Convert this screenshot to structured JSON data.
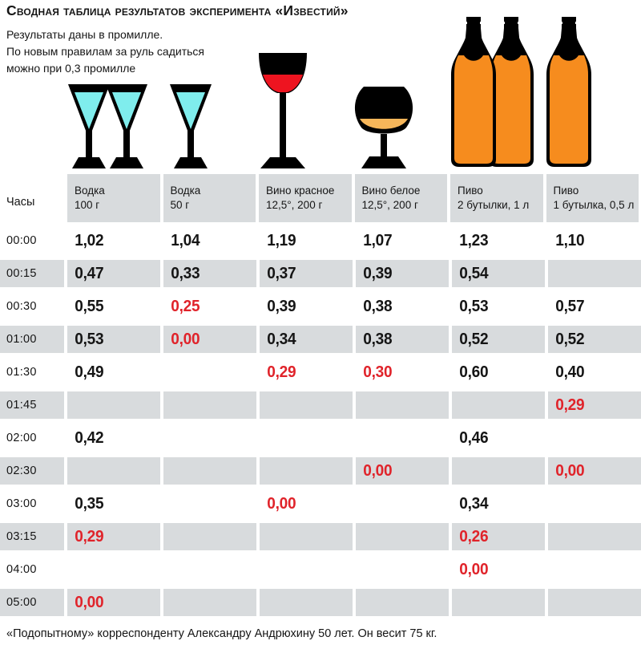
{
  "title": "Сводная таблица результатов эксперимента «Известий»",
  "subtitle_lines": [
    "Результаты даны в промилле.",
    "По новым правилам за руль садиться",
    "можно при 0,3 промилле"
  ],
  "footer": "«Подопытному» корреспонденту Александру Андрюхину 50 лет. Он весит 75 кг.",
  "colors": {
    "ink": "#151515",
    "accent_red": "#e0232a",
    "shade_gray": "#d8dbdd",
    "vodka_cyan": "#7feded",
    "wine_red": "#ee1420",
    "wine_white": "#f6b65a",
    "beer_orange": "#f68c1e"
  },
  "table": {
    "time_header": "Часы",
    "columns": [
      {
        "label_line1": "Водка",
        "label_line2": "100 г",
        "icon": "vodka-glasses-two-icon"
      },
      {
        "label_line1": "Водка",
        "label_line2": "50 г",
        "icon": "vodka-glass-icon"
      },
      {
        "label_line1": "Вино красное",
        "label_line2": "12,5°, 200 г",
        "icon": "red-wine-glass-icon"
      },
      {
        "label_line1": "Вино белое",
        "label_line2": "12,5°, 200 г",
        "icon": "white-wine-glass-icon"
      },
      {
        "label_line1": "Пиво",
        "label_line2": "2 бутылки, 1 л",
        "icon": "beer-bottles-two-icon"
      },
      {
        "label_line1": "Пиво",
        "label_line2": "1 бутылка, 0,5 л",
        "icon": "beer-bottle-icon"
      }
    ],
    "rows": [
      {
        "time": "00:00",
        "cells": [
          {
            "value": "1,02",
            "below_limit": false
          },
          {
            "value": "1,04",
            "below_limit": false
          },
          {
            "value": "1,19",
            "below_limit": false
          },
          {
            "value": "1,07",
            "below_limit": false
          },
          {
            "value": "1,23",
            "below_limit": false
          },
          {
            "value": "1,10",
            "below_limit": false
          }
        ]
      },
      {
        "time": "00:15",
        "cells": [
          {
            "value": "0,47",
            "below_limit": false
          },
          {
            "value": "0,33",
            "below_limit": false
          },
          {
            "value": "0,37",
            "below_limit": false
          },
          {
            "value": "0,39",
            "below_limit": false
          },
          {
            "value": "0,54",
            "below_limit": false
          },
          {
            "value": "",
            "below_limit": false
          }
        ]
      },
      {
        "time": "00:30",
        "cells": [
          {
            "value": "0,55",
            "below_limit": false
          },
          {
            "value": "0,25",
            "below_limit": true
          },
          {
            "value": "0,39",
            "below_limit": false
          },
          {
            "value": "0,38",
            "below_limit": false
          },
          {
            "value": "0,53",
            "below_limit": false
          },
          {
            "value": "0,57",
            "below_limit": false
          }
        ]
      },
      {
        "time": "01:00",
        "cells": [
          {
            "value": "0,53",
            "below_limit": false
          },
          {
            "value": "0,00",
            "below_limit": true
          },
          {
            "value": "0,34",
            "below_limit": false
          },
          {
            "value": "0,38",
            "below_limit": false
          },
          {
            "value": "0,52",
            "below_limit": false
          },
          {
            "value": "0,52",
            "below_limit": false
          }
        ]
      },
      {
        "time": "01:30",
        "cells": [
          {
            "value": "0,49",
            "below_limit": false
          },
          {
            "value": "",
            "below_limit": false
          },
          {
            "value": "0,29",
            "below_limit": true
          },
          {
            "value": "0,30",
            "below_limit": true
          },
          {
            "value": "0,60",
            "below_limit": false
          },
          {
            "value": "0,40",
            "below_limit": false
          }
        ]
      },
      {
        "time": "01:45",
        "cells": [
          {
            "value": "",
            "below_limit": false
          },
          {
            "value": "",
            "below_limit": false
          },
          {
            "value": "",
            "below_limit": false
          },
          {
            "value": "",
            "below_limit": false
          },
          {
            "value": "",
            "below_limit": false
          },
          {
            "value": "0,29",
            "below_limit": true
          }
        ]
      },
      {
        "time": "02:00",
        "cells": [
          {
            "value": "0,42",
            "below_limit": false
          },
          {
            "value": "",
            "below_limit": false
          },
          {
            "value": "",
            "below_limit": false
          },
          {
            "value": "",
            "below_limit": false
          },
          {
            "value": "0,46",
            "below_limit": false
          },
          {
            "value": "",
            "below_limit": false
          }
        ]
      },
      {
        "time": "02:30",
        "cells": [
          {
            "value": "",
            "below_limit": false
          },
          {
            "value": "",
            "below_limit": false
          },
          {
            "value": "",
            "below_limit": false
          },
          {
            "value": "0,00",
            "below_limit": true
          },
          {
            "value": "",
            "below_limit": false
          },
          {
            "value": "0,00",
            "below_limit": true
          }
        ]
      },
      {
        "time": "03:00",
        "cells": [
          {
            "value": "0,35",
            "below_limit": false
          },
          {
            "value": "",
            "below_limit": false
          },
          {
            "value": "0,00",
            "below_limit": true
          },
          {
            "value": "",
            "below_limit": false
          },
          {
            "value": "0,34",
            "below_limit": false
          },
          {
            "value": "",
            "below_limit": false
          }
        ]
      },
      {
        "time": "03:15",
        "cells": [
          {
            "value": "0,29",
            "below_limit": true
          },
          {
            "value": "",
            "below_limit": false
          },
          {
            "value": "",
            "below_limit": false
          },
          {
            "value": "",
            "below_limit": false
          },
          {
            "value": "0,26",
            "below_limit": true
          },
          {
            "value": "",
            "below_limit": false
          }
        ]
      },
      {
        "time": "04:00",
        "cells": [
          {
            "value": "",
            "below_limit": false
          },
          {
            "value": "",
            "below_limit": false
          },
          {
            "value": "",
            "below_limit": false
          },
          {
            "value": "",
            "below_limit": false
          },
          {
            "value": "0,00",
            "below_limit": true
          },
          {
            "value": "",
            "below_limit": false
          }
        ]
      },
      {
        "time": "05:00",
        "cells": [
          {
            "value": "0,00",
            "below_limit": true
          },
          {
            "value": "",
            "below_limit": false
          },
          {
            "value": "",
            "below_limit": false
          },
          {
            "value": "",
            "below_limit": false
          },
          {
            "value": "",
            "below_limit": false
          },
          {
            "value": "",
            "below_limit": false
          }
        ]
      }
    ]
  },
  "chart_data": {
    "type": "table",
    "title": "Сводная таблица результатов эксперимента «Известий»",
    "unit": "промилле",
    "drive_limit_permille": 0.3,
    "row_header": "Часы",
    "columns": [
      "Водка 100 г",
      "Водка 50 г",
      "Вино красное 12,5°, 200 г",
      "Вино белое 12,5°, 200 г",
      "Пиво 2 бутылки, 1 л",
      "Пиво 1 бутылка, 0,5 л"
    ],
    "times": [
      "00:00",
      "00:15",
      "00:30",
      "01:00",
      "01:30",
      "01:45",
      "02:00",
      "02:30",
      "03:00",
      "03:15",
      "04:00",
      "05:00"
    ],
    "values": [
      [
        1.02,
        1.04,
        1.19,
        1.07,
        1.23,
        1.1
      ],
      [
        0.47,
        0.33,
        0.37,
        0.39,
        0.54,
        null
      ],
      [
        0.55,
        0.25,
        0.39,
        0.38,
        0.53,
        0.57
      ],
      [
        0.53,
        0.0,
        0.34,
        0.38,
        0.52,
        0.52
      ],
      [
        0.49,
        null,
        0.29,
        0.3,
        0.6,
        0.4
      ],
      [
        null,
        null,
        null,
        null,
        null,
        0.29
      ],
      [
        0.42,
        null,
        null,
        null,
        0.46,
        null
      ],
      [
        null,
        null,
        null,
        0.0,
        null,
        0.0
      ],
      [
        0.35,
        null,
        0.0,
        null,
        0.34,
        null
      ],
      [
        0.29,
        null,
        null,
        null,
        0.26,
        null
      ],
      [
        null,
        null,
        null,
        null,
        0.0,
        null
      ],
      [
        0.0,
        null,
        null,
        null,
        null,
        null
      ]
    ]
  }
}
